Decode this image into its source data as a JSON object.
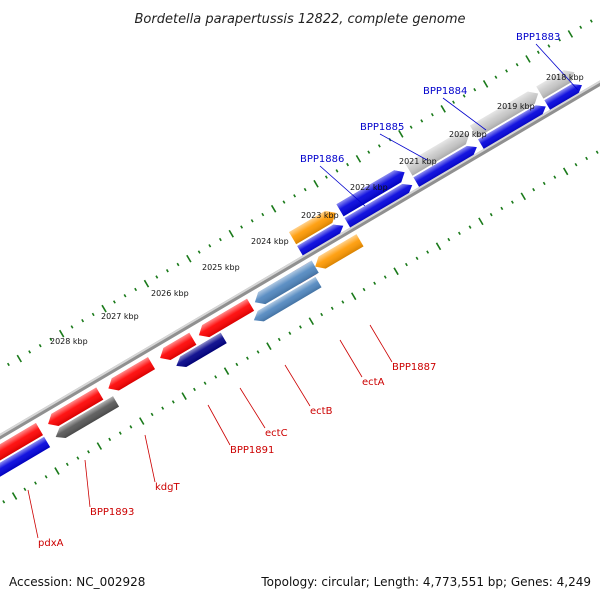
{
  "header": {
    "title": "Bordetella parapertussis 12822, complete genome"
  },
  "footer": {
    "accession": "Accession: NC_002928",
    "summary": "Topology: circular; Length: 4,773,551 bp; Genes: 4,249"
  },
  "tick_labels": [
    "2018 kbp",
    "2019 kbp",
    "2020 kbp",
    "2021 kbp",
    "2022 kbp",
    "2023 kbp",
    "2024 kbp",
    "2025 kbp",
    "2026 kbp",
    "2027 kbp",
    "2028 kbp"
  ],
  "colors": {
    "forward_label": "#0000cc",
    "reverse_label": "#cc0000",
    "tick": "#1a7a1a",
    "backbone": "#909090"
  },
  "genes_top": [
    {
      "name": "BPP1883",
      "colors": [
        "#c8c8c8",
        "#0000dd"
      ]
    },
    {
      "name": "BPP1884",
      "colors": [
        "#c8c8c8",
        "#0000dd"
      ]
    },
    {
      "name": "BPP1885",
      "colors": [
        "#0000dd",
        "#0000dd"
      ]
    },
    {
      "name": "BPP1886",
      "colors": [
        "#ff9900",
        "#0000dd"
      ]
    }
  ],
  "genes_bottom": [
    {
      "name": "BPP1887",
      "color": "#ff9900"
    },
    {
      "name": "ectA",
      "color": "#ff0000"
    },
    {
      "name": "ectB",
      "color": "#4f86bf"
    },
    {
      "name": "ectC",
      "color": "#ff0000"
    },
    {
      "name": "BPP1891",
      "color": "#ff0000"
    },
    {
      "name": "kdgT",
      "color": "#ff0000"
    },
    {
      "name": "BPP1893",
      "color": "#555555"
    },
    {
      "name": "pdxA",
      "color": "#ff0000"
    }
  ]
}
